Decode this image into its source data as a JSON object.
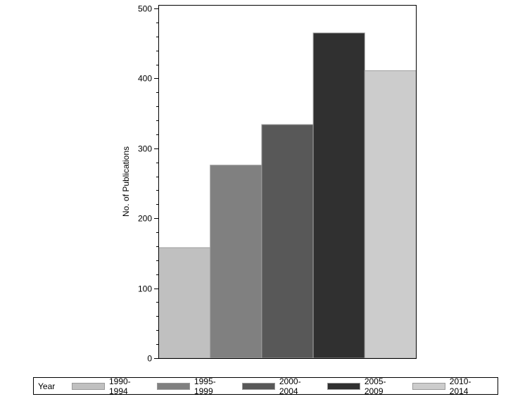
{
  "chart_data": {
    "type": "bar",
    "title": "",
    "xlabel": "",
    "ylabel": "No. of Publications",
    "ylim": [
      0,
      500
    ],
    "yticks": [
      0,
      100,
      200,
      300,
      400,
      500
    ],
    "minor_tick_step": 20,
    "grid": false,
    "legend_position": "bottom",
    "legend_title": "Year",
    "categories": [
      "1990-1994",
      "1995-1999",
      "2000-2004",
      "2005-2009",
      "2010-2014"
    ],
    "values": [
      158,
      276,
      334,
      465,
      411
    ],
    "colors": [
      "#c0c0c0",
      "#808080",
      "#585858",
      "#303030",
      "#cccccc"
    ]
  },
  "legend": {
    "title": "Year",
    "items": [
      {
        "label": "1990-1994",
        "color": "#c0c0c0"
      },
      {
        "label": "1995-1999",
        "color": "#808080"
      },
      {
        "label": "2000-2004",
        "color": "#585858"
      },
      {
        "label": "2005-2009",
        "color": "#303030"
      },
      {
        "label": "2010-2014",
        "color": "#cccccc"
      }
    ]
  }
}
